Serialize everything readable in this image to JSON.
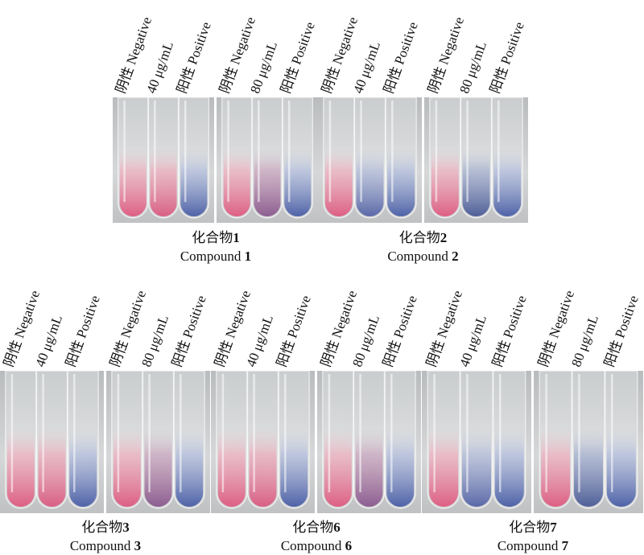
{
  "tube_labels": {
    "negative": "阴性 Negative",
    "positive": "阳性 Positive",
    "dose_40": "40 μg/mL",
    "dose_80": "80 μg/mL"
  },
  "colors": {
    "negative_pink": "#e57a9a",
    "positive_blue": "#5c6fb3",
    "purple": "#8a6aa6",
    "glass_bg": "#c8cacc"
  },
  "groups": [
    {
      "caption_cn_prefix": "化合物",
      "caption_cn_num": "1",
      "caption_en_prefix": "Compound ",
      "caption_en_num": "1",
      "panel_40": [
        "negative",
        "pink",
        "positive"
      ],
      "panel_80": [
        "negative",
        "purple",
        "positive"
      ]
    },
    {
      "caption_cn_prefix": "化合物",
      "caption_cn_num": "2",
      "caption_en_prefix": "Compound ",
      "caption_en_num": "2",
      "panel_40": [
        "negative",
        "blue",
        "positive"
      ],
      "panel_80": [
        "negative",
        "darkblue",
        "positive"
      ]
    },
    {
      "caption_cn_prefix": "化合物",
      "caption_cn_num": "3",
      "caption_en_prefix": "Compound ",
      "caption_en_num": "3",
      "panel_40": [
        "negative",
        "pink",
        "positive"
      ],
      "panel_80": [
        "negative",
        "purple",
        "positive"
      ]
    },
    {
      "caption_cn_prefix": "化合物",
      "caption_cn_num": "6",
      "caption_en_prefix": "Compound ",
      "caption_en_num": "6",
      "panel_40": [
        "negative",
        "pink",
        "positive"
      ],
      "panel_80": [
        "negative",
        "purple",
        "positive"
      ]
    },
    {
      "caption_cn_prefix": "化合物",
      "caption_cn_num": "7",
      "caption_en_prefix": "Compound ",
      "caption_en_num": "7",
      "panel_40": [
        "negative",
        "blue",
        "positive"
      ],
      "panel_80": [
        "negative",
        "darkblue",
        "positive"
      ]
    }
  ]
}
